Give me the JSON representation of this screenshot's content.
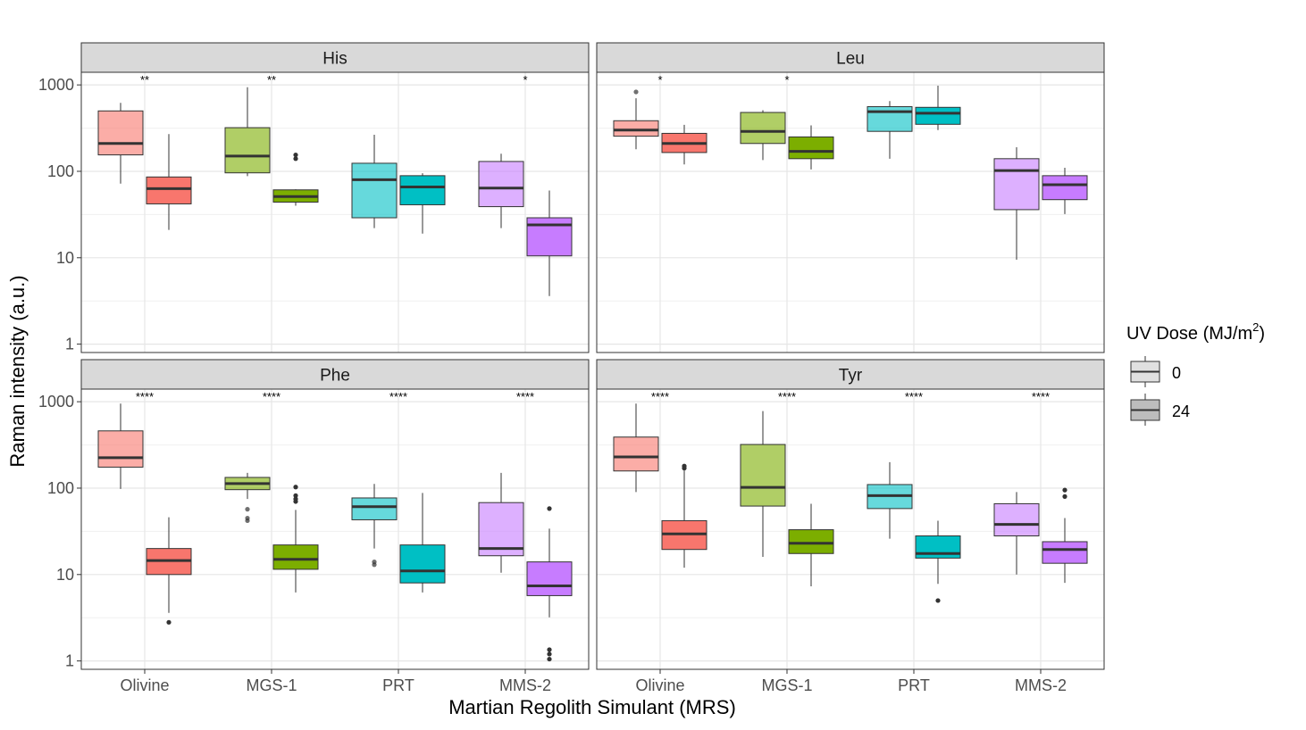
{
  "chart_data": {
    "type": "boxplot",
    "y_scale": "log10",
    "ylim": [
      0.8,
      1400
    ],
    "y_ticks": [
      1,
      10,
      100,
      1000
    ],
    "y_tick_labels": [
      "1",
      "10",
      "100",
      "1000"
    ],
    "xlabel": "Martian Regolith Simulant (MRS)",
    "ylabel": "Raman intensity (a.u.)",
    "categories": [
      "Olivine",
      "MGS-1",
      "PRT",
      "MMS-2"
    ],
    "colors": {
      "Olivine": "#F8766D",
      "MGS-1": "#7CAE00",
      "PRT": "#00BFC4",
      "MMS-2": "#C77CFF"
    },
    "light_alpha": 0.6,
    "legend": {
      "title": "UV Dose (MJ/m",
      "title_sup": "2",
      "title_end": ")",
      "position": "right",
      "items": [
        "0",
        "24"
      ]
    },
    "panels": [
      {
        "name": "His",
        "sig": [
          "**",
          "**",
          "",
          "*"
        ],
        "boxes": [
          {
            "cat": "Olivine",
            "dose": "0",
            "q1": 155,
            "median": 210,
            "q3": 500,
            "lo": 72,
            "hi": 620,
            "outliers": []
          },
          {
            "cat": "Olivine",
            "dose": "24",
            "q1": 42,
            "median": 63,
            "q3": 86,
            "lo": 21,
            "hi": 270,
            "outliers": []
          },
          {
            "cat": "MGS-1",
            "dose": "0",
            "q1": 96,
            "median": 150,
            "q3": 320,
            "lo": 88,
            "hi": 940,
            "outliers": []
          },
          {
            "cat": "MGS-1",
            "dose": "24",
            "q1": 44,
            "median": 51,
            "q3": 61,
            "lo": 40,
            "hi": 62,
            "outliers": [
              140,
              155
            ]
          },
          {
            "cat": "PRT",
            "dose": "0",
            "q1": 29,
            "median": 80,
            "q3": 124,
            "lo": 22,
            "hi": 265,
            "outliers": []
          },
          {
            "cat": "PRT",
            "dose": "24",
            "q1": 41,
            "median": 66,
            "q3": 89,
            "lo": 19,
            "hi": 95,
            "outliers": []
          },
          {
            "cat": "MMS-2",
            "dose": "0",
            "q1": 39,
            "median": 64,
            "q3": 130,
            "lo": 22,
            "hi": 160,
            "outliers": []
          },
          {
            "cat": "MMS-2",
            "dose": "24",
            "q1": 10.5,
            "median": 24,
            "q3": 29,
            "lo": 3.6,
            "hi": 60,
            "outliers": []
          }
        ]
      },
      {
        "name": "Leu",
        "sig": [
          "*",
          "*",
          "",
          ""
        ],
        "boxes": [
          {
            "cat": "Olivine",
            "dose": "0",
            "q1": 255,
            "median": 300,
            "q3": 385,
            "lo": 180,
            "hi": 700,
            "outliers": [
              830
            ]
          },
          {
            "cat": "Olivine",
            "dose": "24",
            "q1": 165,
            "median": 210,
            "q3": 275,
            "lo": 120,
            "hi": 345,
            "outliers": []
          },
          {
            "cat": "MGS-1",
            "dose": "0",
            "q1": 210,
            "median": 290,
            "q3": 480,
            "lo": 135,
            "hi": 510,
            "outliers": []
          },
          {
            "cat": "MGS-1",
            "dose": "24",
            "q1": 140,
            "median": 170,
            "q3": 250,
            "lo": 105,
            "hi": 340,
            "outliers": []
          },
          {
            "cat": "PRT",
            "dose": "0",
            "q1": 290,
            "median": 490,
            "q3": 560,
            "lo": 140,
            "hi": 650,
            "outliers": []
          },
          {
            "cat": "PRT",
            "dose": "24",
            "q1": 350,
            "median": 470,
            "q3": 550,
            "lo": 300,
            "hi": 980,
            "outliers": []
          },
          {
            "cat": "MMS-2",
            "dose": "0",
            "q1": 36,
            "median": 102,
            "q3": 140,
            "lo": 9.5,
            "hi": 190,
            "outliers": []
          },
          {
            "cat": "MMS-2",
            "dose": "24",
            "q1": 47,
            "median": 70,
            "q3": 89,
            "lo": 32,
            "hi": 110,
            "outliers": []
          }
        ]
      },
      {
        "name": "Phe",
        "sig": [
          "****",
          "****",
          "****",
          "****"
        ],
        "boxes": [
          {
            "cat": "Olivine",
            "dose": "0",
            "q1": 175,
            "median": 225,
            "q3": 460,
            "lo": 98,
            "hi": 950,
            "outliers": []
          },
          {
            "cat": "Olivine",
            "dose": "24",
            "q1": 10,
            "median": 14.5,
            "q3": 20,
            "lo": 3.6,
            "hi": 46,
            "outliers": [
              2.8
            ]
          },
          {
            "cat": "MGS-1",
            "dose": "0",
            "q1": 96,
            "median": 113,
            "q3": 133,
            "lo": 75,
            "hi": 150,
            "outliers": [
              42,
              45,
              57
            ]
          },
          {
            "cat": "MGS-1",
            "dose": "24",
            "q1": 11.5,
            "median": 15,
            "q3": 22,
            "lo": 6.2,
            "hi": 56,
            "outliers": [
              70,
              75,
              82,
              103
            ]
          },
          {
            "cat": "PRT",
            "dose": "0",
            "q1": 43,
            "median": 61,
            "q3": 77,
            "lo": 20,
            "hi": 112,
            "outliers": [
              13,
              14
            ]
          },
          {
            "cat": "PRT",
            "dose": "24",
            "q1": 8,
            "median": 11,
            "q3": 22,
            "lo": 6.2,
            "hi": 88,
            "outliers": []
          },
          {
            "cat": "MMS-2",
            "dose": "0",
            "q1": 16.5,
            "median": 20,
            "q3": 68,
            "lo": 10.5,
            "hi": 150,
            "outliers": []
          },
          {
            "cat": "MMS-2",
            "dose": "24",
            "q1": 5.7,
            "median": 7.4,
            "q3": 14,
            "lo": 3.2,
            "hi": 34,
            "outliers": [
              58,
              1.05,
              1.2,
              1.35
            ]
          }
        ]
      },
      {
        "name": "Tyr",
        "sig": [
          "****",
          "****",
          "****",
          "****"
        ],
        "boxes": [
          {
            "cat": "Olivine",
            "dose": "0",
            "q1": 158,
            "median": 230,
            "q3": 390,
            "lo": 90,
            "hi": 950,
            "outliers": []
          },
          {
            "cat": "Olivine",
            "dose": "24",
            "q1": 19.5,
            "median": 29.5,
            "q3": 42,
            "lo": 12,
            "hi": 160,
            "outliers": [
              170,
              180
            ]
          },
          {
            "cat": "MGS-1",
            "dose": "0",
            "q1": 62,
            "median": 102,
            "q3": 320,
            "lo": 16,
            "hi": 780,
            "outliers": []
          },
          {
            "cat": "MGS-1",
            "dose": "24",
            "q1": 17.5,
            "median": 23,
            "q3": 33,
            "lo": 7.3,
            "hi": 66,
            "outliers": []
          },
          {
            "cat": "PRT",
            "dose": "0",
            "q1": 58,
            "median": 82,
            "q3": 110,
            "lo": 26,
            "hi": 200,
            "outliers": []
          },
          {
            "cat": "PRT",
            "dose": "24",
            "q1": 15.5,
            "median": 17.5,
            "q3": 28,
            "lo": 7.8,
            "hi": 42,
            "outliers": [
              5
            ]
          },
          {
            "cat": "MMS-2",
            "dose": "0",
            "q1": 28,
            "median": 38,
            "q3": 66,
            "lo": 10,
            "hi": 90,
            "outliers": []
          },
          {
            "cat": "MMS-2",
            "dose": "24",
            "q1": 13.5,
            "median": 19.5,
            "q3": 24,
            "lo": 8,
            "hi": 45,
            "outliers": [
              80,
              95
            ]
          }
        ]
      }
    ]
  }
}
